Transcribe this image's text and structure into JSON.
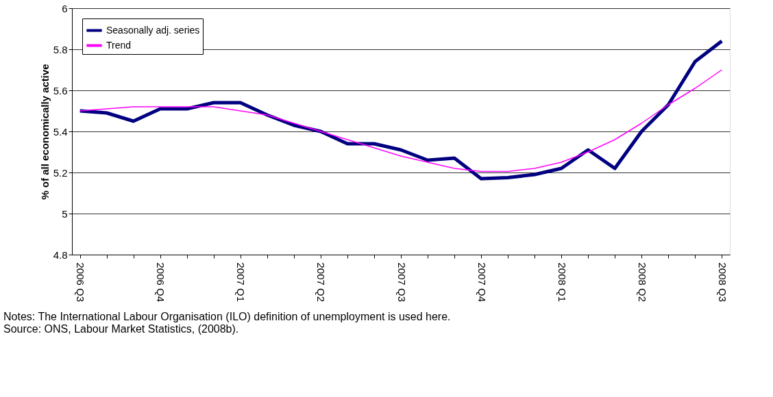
{
  "chart_data": {
    "type": "line",
    "ylabel": "% of all economically active",
    "categories": [
      "2006 Q3",
      null,
      null,
      "2006 Q4",
      null,
      null,
      "2007 Q1",
      null,
      null,
      "2007 Q2",
      null,
      null,
      "2007 Q3",
      null,
      null,
      "2007 Q4",
      null,
      null,
      "2008 Q1",
      null,
      null,
      "2008 Q2",
      null,
      null,
      "2008 Q3"
    ],
    "series": [
      {
        "name": "Seasonally adj. series",
        "color": "#000080",
        "values": [
          5.5,
          5.49,
          5.45,
          5.51,
          5.51,
          5.54,
          5.54,
          5.48,
          5.43,
          5.4,
          5.34,
          5.34,
          5.31,
          5.26,
          5.27,
          5.17,
          5.175,
          5.19,
          5.22,
          5.31,
          5.22,
          5.4,
          5.53,
          5.74,
          5.84
        ]
      },
      {
        "name": "Trend",
        "color": "#ff00ff",
        "values": [
          5.5,
          5.51,
          5.52,
          5.52,
          5.52,
          5.52,
          5.5,
          5.48,
          5.44,
          5.4,
          5.36,
          5.32,
          5.28,
          5.25,
          5.22,
          5.205,
          5.205,
          5.22,
          5.25,
          5.3,
          5.36,
          5.44,
          5.53,
          5.61,
          5.7
        ]
      }
    ],
    "ylim": [
      4.8,
      6
    ],
    "yticks": [
      4.8,
      5,
      5.2,
      5.4,
      5.6,
      5.8,
      6
    ],
    "grid": "y",
    "legend": "top left",
    "line_style": "solid",
    "marker": "none",
    "annotations": [
      "Notes: The International Labour Organisation (ILO) definition of unemployment is used here.",
      "Source: ONS, Labour Market Statistics, (2008b)."
    ]
  }
}
